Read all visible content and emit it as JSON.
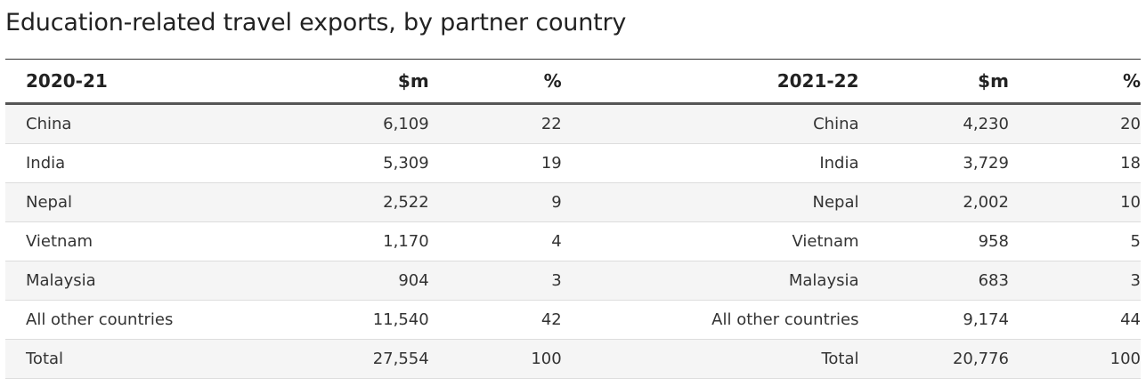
{
  "title": "Education-related travel exports, by partner country",
  "columns": {
    "y1": "2020-21",
    "y1_value": "$m",
    "y1_pct": "%",
    "y2": "2021-22",
    "y2_value": "$m",
    "y2_pct": "%"
  },
  "rows": [
    {
      "c1": "China",
      "v1": "6,109",
      "p1": "22",
      "c2": "China",
      "v2": "4,230",
      "p2": "20"
    },
    {
      "c1": "India",
      "v1": "5,309",
      "p1": "19",
      "c2": "India",
      "v2": "3,729",
      "p2": "18"
    },
    {
      "c1": "Nepal",
      "v1": "2,522",
      "p1": "9",
      "c2": "Nepal",
      "v2": "2,002",
      "p2": "10"
    },
    {
      "c1": "Vietnam",
      "v1": "1,170",
      "p1": "4",
      "c2": "Vietnam",
      "v2": "958",
      "p2": "5"
    },
    {
      "c1": "Malaysia",
      "v1": "904",
      "p1": "3",
      "c2": "Malaysia",
      "v2": "683",
      "p2": "3"
    },
    {
      "c1": "All other countries",
      "v1": "11,540",
      "p1": "42",
      "c2": "All other countries",
      "v2": "9,174",
      "p2": "44"
    },
    {
      "c1": "Total",
      "v1": "27,554",
      "p1": "100",
      "c2": "Total",
      "v2": "20,776",
      "p2": "100"
    }
  ]
}
